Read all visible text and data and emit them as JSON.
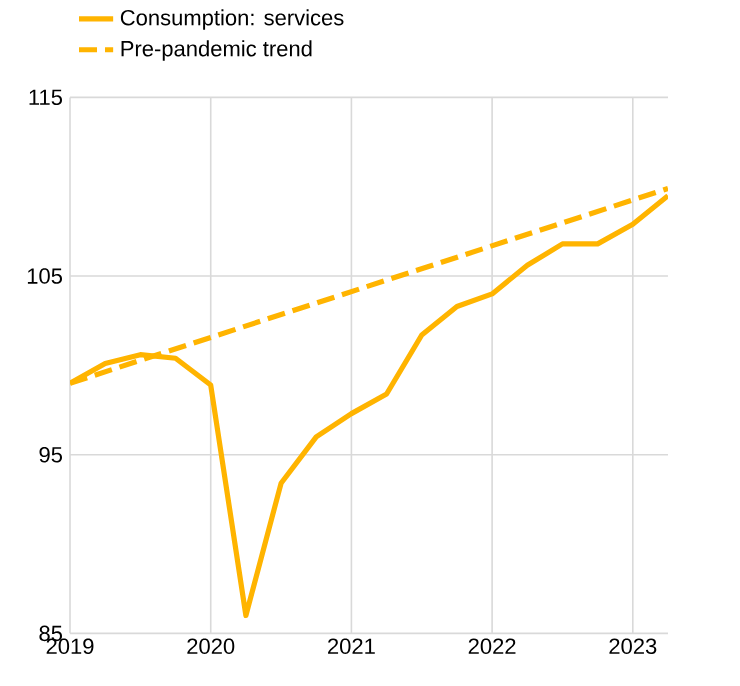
{
  "chart_data": {
    "type": "line",
    "xlim": [
      2019,
      2023.25
    ],
    "ylim": [
      85,
      115
    ],
    "xticks": [
      2019,
      2020,
      2021,
      2022,
      2023
    ],
    "yticks": [
      85,
      95,
      105,
      115
    ],
    "grid": true,
    "legend": "top left",
    "series": [
      {
        "name": "Consumption: services",
        "color": "#ffb400",
        "line_style": "solid",
        "x": [
          2019,
          2019.25,
          2019.5,
          2019.75,
          2020,
          2020.25,
          2020.5,
          2020.75,
          2021,
          2021.25,
          2021.5,
          2021.75,
          2022,
          2022.25,
          2022.5,
          2022.75,
          2023,
          2023.25
        ],
        "values": [
          99.0,
          100.1,
          100.6,
          100.4,
          98.9,
          86.0,
          93.4,
          96.0,
          97.3,
          98.4,
          101.7,
          103.3,
          104.0,
          105.6,
          106.8,
          106.8,
          107.9,
          109.5
        ]
      },
      {
        "name": "Pre-pandemic trend",
        "color": "#ffb400",
        "line_style": "dashed",
        "x": [
          2019,
          2023.25
        ],
        "values": [
          99.0,
          109.9
        ]
      }
    ]
  }
}
